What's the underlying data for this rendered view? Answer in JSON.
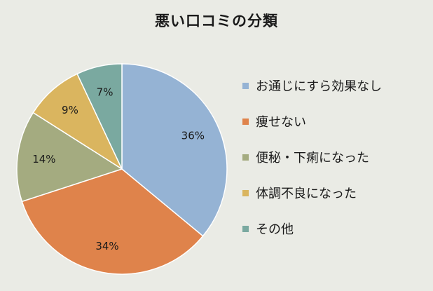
{
  "chart_data": {
    "type": "pie",
    "title": "悪い口コミの分類",
    "slices": [
      {
        "label": "お通じにすら効果なし",
        "value": 36,
        "display": "36%",
        "color": "#95b3d4"
      },
      {
        "label": "痩せない",
        "value": 34,
        "display": "34%",
        "color": "#df834b"
      },
      {
        "label": "便秘・下痢になった",
        "value": 14,
        "display": "14%",
        "color": "#a4ab80"
      },
      {
        "label": "体調不良になった",
        "value": 9,
        "display": "9%",
        "color": "#dab55f"
      },
      {
        "label": "その他",
        "value": 7,
        "display": "7%",
        "color": "#7aa9a0"
      }
    ],
    "legend_position": "right",
    "start_angle_deg": 0,
    "direction": "clockwise"
  }
}
